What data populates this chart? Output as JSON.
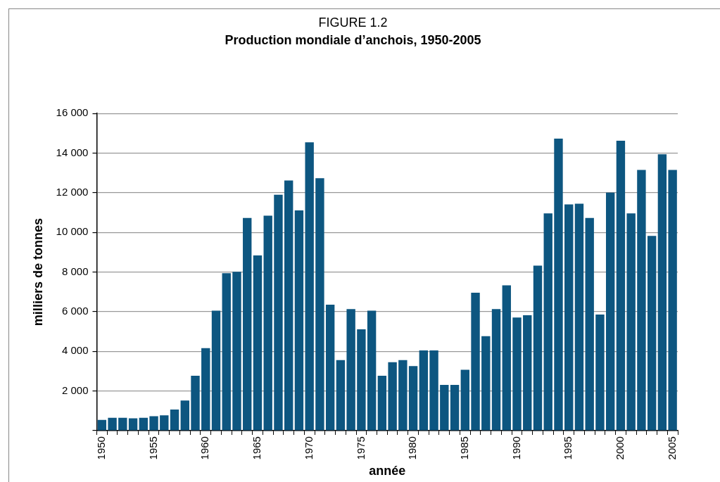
{
  "chart_data": {
    "type": "bar",
    "title": "FIGURE 1.2",
    "subtitle": "Production mondiale d’anchois, 1950-2005",
    "xlabel": "année",
    "ylabel": "milliers de tonnes",
    "categories": [
      "1950",
      null,
      null,
      null,
      null,
      "1955",
      null,
      null,
      null,
      null,
      "1960",
      null,
      null,
      null,
      null,
      "1965",
      null,
      null,
      null,
      null,
      "1970",
      null,
      null,
      null,
      null,
      "1975",
      null,
      null,
      null,
      null,
      "1980",
      null,
      null,
      null,
      null,
      "1985",
      null,
      null,
      null,
      null,
      "1990",
      null,
      null,
      null,
      null,
      "1995",
      null,
      null,
      null,
      null,
      "2000",
      null,
      null,
      null,
      null,
      "2005"
    ],
    "values": [
      540,
      650,
      650,
      620,
      650,
      730,
      770,
      1070,
      1520,
      2770,
      4160,
      6050,
      7940,
      8010,
      10730,
      8840,
      10840,
      11900,
      12620,
      11110,
      14540,
      12730,
      6350,
      3560,
      6130,
      5110,
      6050,
      2770,
      3450,
      3560,
      3260,
      4050,
      4050,
      2310,
      2310,
      3070,
      6960,
      4770,
      6130,
      7330,
      5710,
      5820,
      8320,
      10960,
      14730,
      11410,
      11450,
      10730,
      5860,
      12010,
      14620,
      10960,
      13150,
      9820,
      13940,
      13150
    ],
    "color": "#0d5680",
    "ylim": [
      0,
      16000
    ],
    "yticks": [
      {
        "value": 0,
        "label": null
      },
      {
        "value": 2000,
        "label": "2 000"
      },
      {
        "value": 4000,
        "label": "4 000"
      },
      {
        "value": 6000,
        "label": "6 000"
      },
      {
        "value": 8000,
        "label": "8 000"
      },
      {
        "value": 10000,
        "label": "10 000"
      },
      {
        "value": 12000,
        "label": "12 000"
      },
      {
        "value": 14000,
        "label": "14 000"
      },
      {
        "value": 16000,
        "label": "16 000"
      }
    ],
    "grid": "y"
  }
}
